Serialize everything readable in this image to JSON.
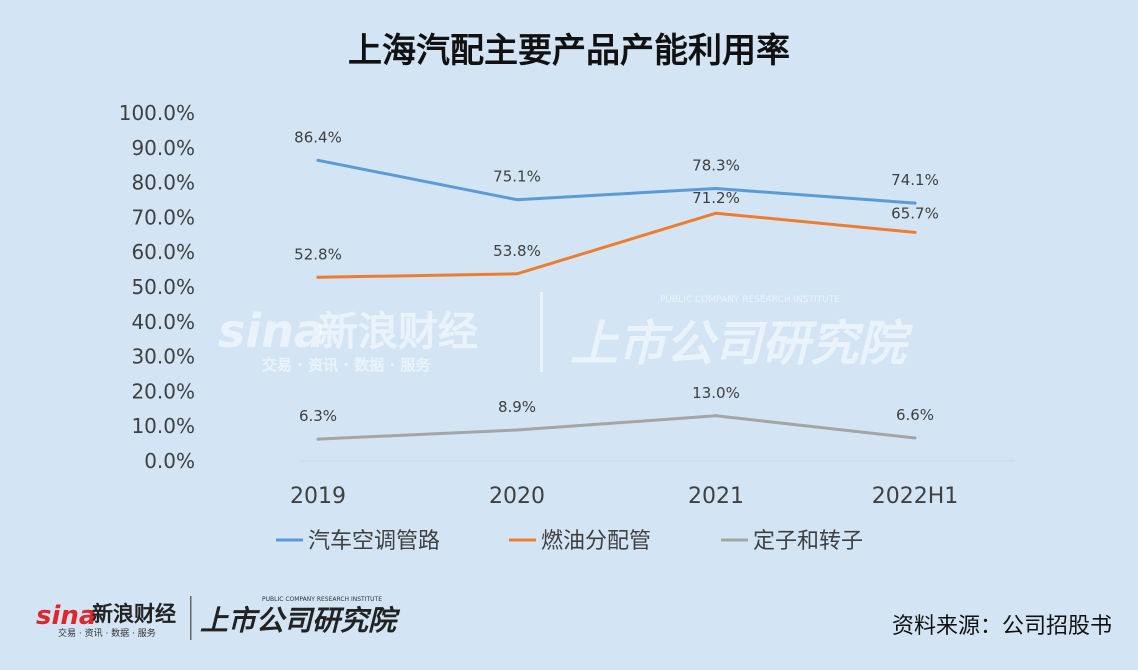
{
  "chart_data": {
    "type": "line",
    "title": "上海汽配主要产品产能利用率",
    "categories": [
      "2019",
      "2020",
      "2021",
      "2022H1"
    ],
    "ylim": [
      0,
      100
    ],
    "y_ticks": [
      "0.0%",
      "10.0%",
      "20.0%",
      "30.0%",
      "40.0%",
      "50.0%",
      "60.0%",
      "70.0%",
      "80.0%",
      "90.0%",
      "100.0%"
    ],
    "grid": false,
    "legend_position": "bottom",
    "series": [
      {
        "name": "汽车空调管路",
        "values": [
          86.4,
          75.1,
          78.3,
          74.1
        ],
        "labels": [
          "86.4%",
          "75.1%",
          "78.3%",
          "74.1%"
        ],
        "color": "#5b9bd5"
      },
      {
        "name": "燃油分配管",
        "values": [
          52.8,
          53.8,
          71.2,
          65.7
        ],
        "labels": [
          "52.8%",
          "53.8%",
          "71.2%",
          "65.7%"
        ],
        "color": "#ed7d31"
      },
      {
        "name": "定子和转子",
        "values": [
          6.3,
          8.9,
          13.0,
          6.6
        ],
        "labels": [
          "6.3%",
          "8.9%",
          "13.0%",
          "6.6%"
        ],
        "color": "#a5a5a5"
      }
    ]
  },
  "source": "资料来源：公司招股书",
  "watermark": {
    "brand": "sina",
    "name": "新浪财经",
    "tagline": "交易 · 资讯 · 数据 · 服务",
    "institute": "上市公司研究院",
    "institute_en": "PUBLIC COMPANY RESEARCH INSTITUTE"
  }
}
